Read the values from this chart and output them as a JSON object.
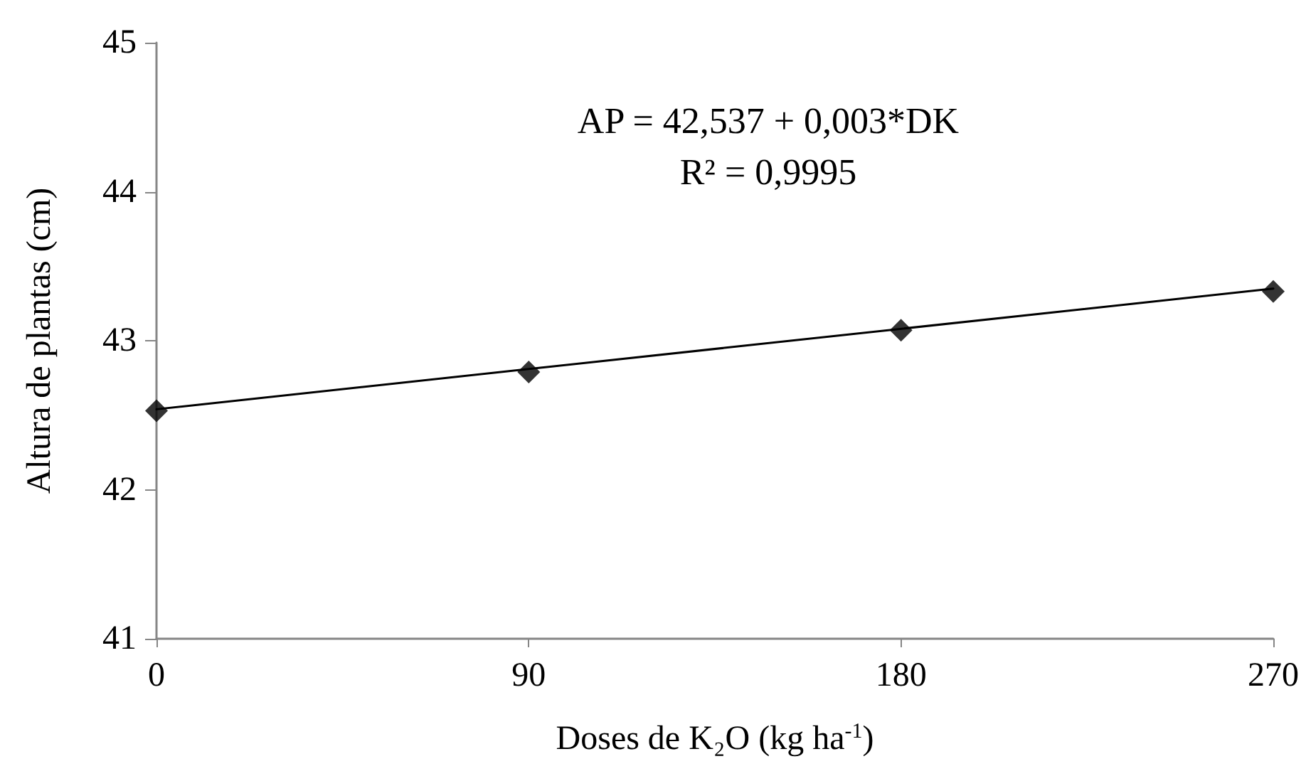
{
  "chart_data": {
    "type": "scatter",
    "xlabel": "Doses de K₂O (kg ha$^{-1}$)",
    "ylabel": "Altura de plantas (cm)",
    "x": [
      0,
      90,
      180,
      270
    ],
    "series": [
      {
        "color": "#000000",
        "values": [
          42.53,
          42.79,
          43.07,
          43.33
        ],
        "marker": "diamond"
      },
      {
        "type": "line",
        "color": "#000000",
        "x": [
          0,
          270
        ],
        "values": [
          42.54,
          43.35
        ],
        "marker": "none",
        "line_style": "solid"
      }
    ],
    "annotations": [
      "AP = 42,537 + 0,003*DK",
      "R² = 0,9995"
    ],
    "xlim": [
      0,
      270
    ],
    "xticks": [
      0,
      90,
      180,
      270
    ],
    "ylim": [
      41,
      45
    ],
    "yticks": [
      41,
      42,
      43,
      44,
      45
    ],
    "grid": false
  }
}
